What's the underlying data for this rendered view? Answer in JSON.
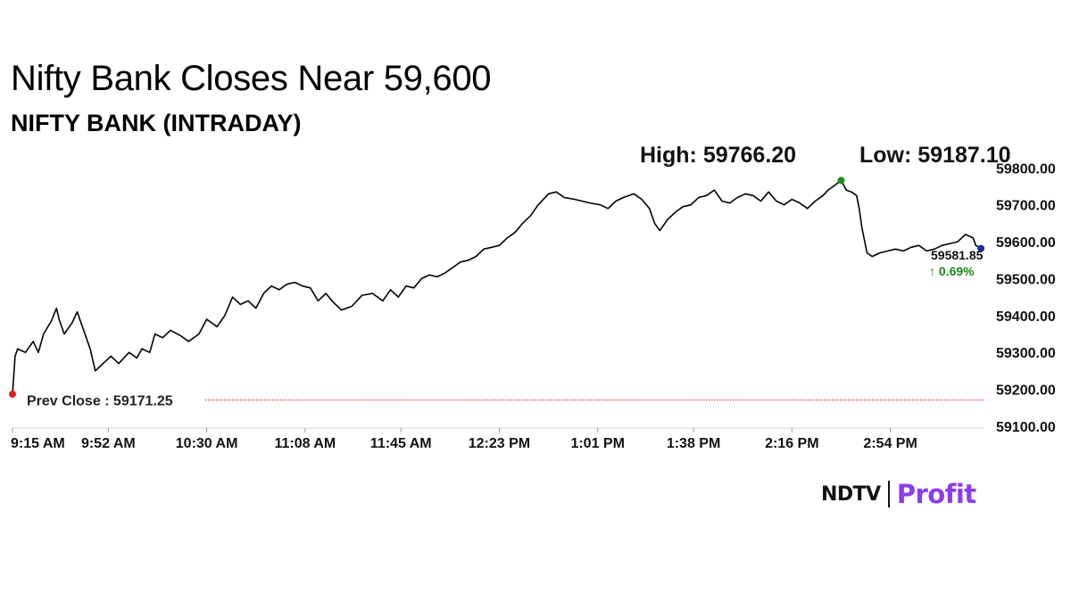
{
  "headline": "Nifty Bank Closes Near 59,600",
  "chart_data": {
    "type": "line",
    "title": "NIFTY BANK (INTRADAY)",
    "high_label": "High: 59766.20",
    "low_label": "Low: 59187.10",
    "high_value": 59766.2,
    "low_value": 59187.1,
    "prev_close_label": "Prev Close : 59171.25",
    "prev_close": 59171.25,
    "last_value_label": "59581.85",
    "change_label": "↑ 0.69%",
    "last_value": 59581.85,
    "ylim": [
      59100,
      59820
    ],
    "y_ticks": [
      59100,
      59200,
      59300,
      59400,
      59500,
      59600,
      59700,
      59800
    ],
    "y_tick_labels": [
      "59100.00",
      "59200.00",
      "59300.00",
      "59400.00",
      "59500.00",
      "59600.00",
      "59700.00",
      "59800.00"
    ],
    "x_tick_minutes": [
      555,
      592,
      630,
      668,
      705,
      743,
      781,
      818,
      856,
      894
    ],
    "x_tick_labels": [
      "9:15 AM",
      "9:52 AM",
      "10:30 AM",
      "11:08 AM",
      "11:45 AM",
      "12:23 PM",
      "1:01 PM",
      "1:38 PM",
      "2:16 PM",
      "2:54 PM"
    ],
    "x_range_minutes": [
      555,
      930
    ],
    "grid": false,
    "series": [
      {
        "x_minutes": [
          555,
          556,
          557,
          560,
          563,
          565,
          567,
          570,
          572,
          573,
          575,
          578,
          580,
          584,
          585,
          587,
          590,
          593,
          596,
          600,
          603,
          605,
          608,
          610,
          613,
          616,
          620,
          623,
          627,
          630,
          632,
          634,
          637,
          640,
          643,
          646,
          649,
          652,
          655,
          658,
          661,
          664,
          667,
          670,
          673,
          676,
          679,
          682,
          686,
          690,
          694,
          698,
          701,
          704,
          707,
          710,
          713,
          716,
          719,
          722,
          725,
          728,
          731,
          734,
          737,
          740,
          743,
          746,
          749,
          752,
          755,
          758,
          762,
          765,
          768,
          772,
          775,
          778,
          782,
          785,
          788,
          791,
          795,
          798,
          801,
          803,
          805,
          808,
          811,
          814,
          817,
          820,
          823,
          826,
          829,
          832,
          835,
          838,
          841,
          844,
          847,
          850,
          853,
          856,
          859,
          862,
          865,
          868,
          870,
          872,
          875,
          877,
          879,
          881,
          882,
          883,
          885,
          887,
          890,
          893,
          896,
          899,
          902,
          905,
          908,
          911,
          914,
          917,
          920,
          923,
          926,
          927,
          929
        ],
        "values": [
          59187,
          59290,
          59310,
          59300,
          59330,
          59300,
          59350,
          59385,
          59420,
          59390,
          59350,
          59380,
          59410,
          59330,
          59310,
          59250,
          59270,
          59290,
          59270,
          59300,
          59285,
          59310,
          59300,
          59350,
          59340,
          59360,
          59345,
          59330,
          59350,
          59390,
          59380,
          59370,
          59400,
          59450,
          59430,
          59440,
          59420,
          59460,
          59480,
          59470,
          59485,
          59490,
          59480,
          59475,
          59440,
          59460,
          59435,
          59415,
          59425,
          59455,
          59460,
          59440,
          59470,
          59450,
          59480,
          59475,
          59500,
          59510,
          59505,
          59515,
          59530,
          59545,
          59550,
          59560,
          59580,
          59585,
          59590,
          59610,
          59625,
          59650,
          59670,
          59700,
          59730,
          59735,
          59720,
          59715,
          59710,
          59705,
          59700,
          59690,
          59710,
          59720,
          59730,
          59715,
          59690,
          59650,
          59630,
          59660,
          59680,
          59695,
          59700,
          59720,
          59725,
          59740,
          59710,
          59705,
          59720,
          59730,
          59725,
          59710,
          59735,
          59710,
          59700,
          59715,
          59705,
          59690,
          59710,
          59725,
          59740,
          59750,
          59766,
          59740,
          59735,
          59725,
          59690,
          59640,
          59570,
          59560,
          59570,
          59575,
          59580,
          59575,
          59585,
          59590,
          59575,
          59580,
          59590,
          59595,
          59600,
          59620,
          59610,
          59590,
          59582
        ]
      }
    ]
  },
  "brand": {
    "ndtv": "NDTV",
    "profit": "Profit"
  },
  "colors": {
    "line": "#000000",
    "high_dot": "#1a8a1a",
    "low_dot": "#e02020",
    "last_dot": "#1a2fa0",
    "prev_close_line": "#e02020",
    "change_up": "#1a8a1a",
    "profit": "#8b3cf0"
  }
}
